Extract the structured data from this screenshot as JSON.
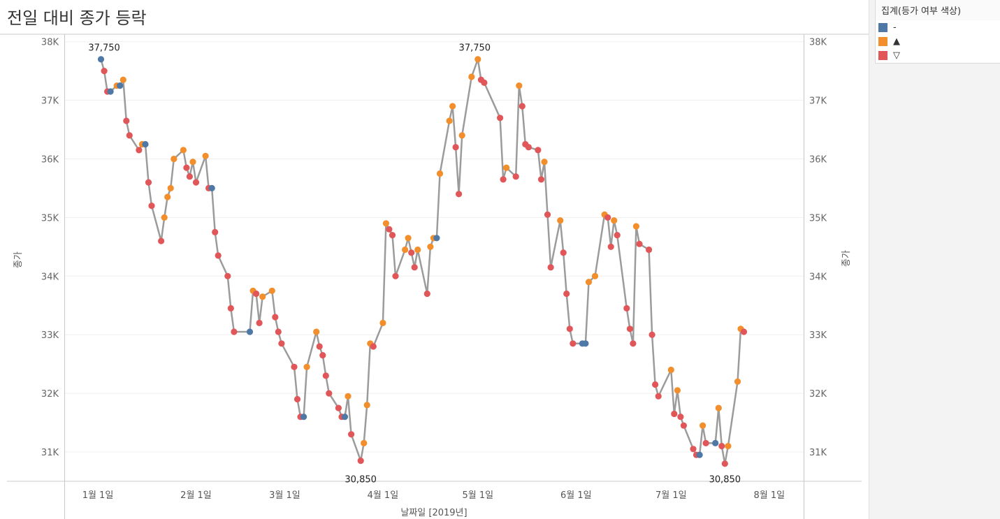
{
  "title": "전일 대비 종가 등락",
  "legend": {
    "title": "집계(등가 여부 색상)",
    "items": [
      {
        "label": "-",
        "color": "#4e79a7"
      },
      {
        "label": "▲",
        "color": "#f28e2b"
      },
      {
        "label": "▽",
        "color": "#e15759"
      }
    ]
  },
  "chart_data": {
    "type": "line",
    "xlabel": "날짜일 [2019년]",
    "ylabel_left": "종가",
    "ylabel_right": "종가",
    "x_ticks": [
      "1월 1일",
      "2월 1일",
      "3월 1일",
      "4월 1일",
      "5월 1일",
      "6월 1일",
      "7월 1일",
      "8월 1일"
    ],
    "y_ticks": [
      "31K",
      "32K",
      "33K",
      "34K",
      "35K",
      "36K",
      "37K",
      "38K"
    ],
    "y_range": [
      30500,
      38100
    ],
    "line_color": "#9b9b9b",
    "series": [
      {
        "points": [
          [
            "2019-01-02",
            37700,
            "-"
          ],
          [
            "2019-01-03",
            37500,
            "▽"
          ],
          [
            "2019-01-04",
            37150,
            "▽"
          ],
          [
            "2019-01-05",
            37150,
            "-"
          ],
          [
            "2019-01-07",
            37250,
            "▲"
          ],
          [
            "2019-01-08",
            37250,
            "-"
          ],
          [
            "2019-01-09",
            37350,
            "▲"
          ],
          [
            "2019-01-10",
            36650,
            "▽"
          ],
          [
            "2019-01-11",
            36400,
            "▽"
          ],
          [
            "2019-01-14",
            36150,
            "▽"
          ],
          [
            "2019-01-15",
            36250,
            "▲"
          ],
          [
            "2019-01-16",
            36250,
            "-"
          ],
          [
            "2019-01-17",
            35600,
            "▽"
          ],
          [
            "2019-01-18",
            35200,
            "▽"
          ],
          [
            "2019-01-21",
            34600,
            "▽"
          ],
          [
            "2019-01-22",
            35000,
            "▲"
          ],
          [
            "2019-01-23",
            35350,
            "▲"
          ],
          [
            "2019-01-24",
            35500,
            "▲"
          ],
          [
            "2019-01-25",
            36000,
            "▲"
          ],
          [
            "2019-01-28",
            36150,
            "▲"
          ],
          [
            "2019-01-29",
            35850,
            "▽"
          ],
          [
            "2019-01-30",
            35700,
            "▽"
          ],
          [
            "2019-01-31",
            35950,
            "▲"
          ],
          [
            "2019-02-01",
            35600,
            "▽"
          ],
          [
            "2019-02-04",
            36050,
            "▲"
          ],
          [
            "2019-02-05",
            35500,
            "▽"
          ],
          [
            "2019-02-06",
            35500,
            "-"
          ],
          [
            "2019-02-07",
            34750,
            "▽"
          ],
          [
            "2019-02-08",
            34350,
            "▽"
          ],
          [
            "2019-02-11",
            34000,
            "▽"
          ],
          [
            "2019-02-12",
            33450,
            "▽"
          ],
          [
            "2019-02-13",
            33050,
            "▽"
          ],
          [
            "2019-02-18",
            33050,
            "-"
          ],
          [
            "2019-02-19",
            33750,
            "▲"
          ],
          [
            "2019-02-20",
            33700,
            "▽"
          ],
          [
            "2019-02-21",
            33200,
            "▽"
          ],
          [
            "2019-02-22",
            33650,
            "▲"
          ],
          [
            "2019-02-25",
            33750,
            "▲"
          ],
          [
            "2019-02-26",
            33300,
            "▽"
          ],
          [
            "2019-02-27",
            33050,
            "▽"
          ],
          [
            "2019-02-28",
            32850,
            "▽"
          ],
          [
            "2019-03-04",
            32450,
            "▽"
          ],
          [
            "2019-03-05",
            31900,
            "▽"
          ],
          [
            "2019-03-06",
            31600,
            "▽"
          ],
          [
            "2019-03-07",
            31600,
            "-"
          ],
          [
            "2019-03-08",
            32450,
            "▲"
          ],
          [
            "2019-03-11",
            33050,
            "▲"
          ],
          [
            "2019-03-12",
            32800,
            "▽"
          ],
          [
            "2019-03-13",
            32650,
            "▽"
          ],
          [
            "2019-03-14",
            32300,
            "▽"
          ],
          [
            "2019-03-15",
            32000,
            "▽"
          ],
          [
            "2019-03-18",
            31750,
            "▽"
          ],
          [
            "2019-03-19",
            31600,
            "▽"
          ],
          [
            "2019-03-20",
            31600,
            "-"
          ],
          [
            "2019-03-21",
            31950,
            "▲"
          ],
          [
            "2019-03-22",
            31300,
            "▽"
          ],
          [
            "2019-03-25",
            30850,
            "▽"
          ],
          [
            "2019-03-26",
            31150,
            "▲"
          ],
          [
            "2019-03-27",
            31800,
            "▲"
          ],
          [
            "2019-03-28",
            32850,
            "▲"
          ],
          [
            "2019-03-29",
            32800,
            "▽"
          ],
          [
            "2019-04-01",
            33200,
            "▲"
          ],
          [
            "2019-04-02",
            34900,
            "▲"
          ],
          [
            "2019-04-03",
            34800,
            "▽"
          ],
          [
            "2019-04-04",
            34700,
            "▽"
          ],
          [
            "2019-04-05",
            34000,
            "▽"
          ],
          [
            "2019-04-08",
            34450,
            "▲"
          ],
          [
            "2019-04-09",
            34650,
            "▲"
          ],
          [
            "2019-04-10",
            34400,
            "▽"
          ],
          [
            "2019-04-11",
            34150,
            "▽"
          ],
          [
            "2019-04-12",
            34450,
            "▲"
          ],
          [
            "2019-04-15",
            33700,
            "▽"
          ],
          [
            "2019-04-16",
            34500,
            "▲"
          ],
          [
            "2019-04-17",
            34650,
            "▲"
          ],
          [
            "2019-04-18",
            34650,
            "-"
          ],
          [
            "2019-04-19",
            35750,
            "▲"
          ],
          [
            "2019-04-22",
            36650,
            "▲"
          ],
          [
            "2019-04-23",
            36900,
            "▲"
          ],
          [
            "2019-04-24",
            36200,
            "▽"
          ],
          [
            "2019-04-25",
            35400,
            "▽"
          ],
          [
            "2019-04-26",
            36400,
            "▲"
          ],
          [
            "2019-04-29",
            37400,
            "▲"
          ],
          [
            "2019-05-01",
            37700,
            "▲"
          ],
          [
            "2019-05-02",
            37350,
            "▽"
          ],
          [
            "2019-05-03",
            37300,
            "▽"
          ],
          [
            "2019-05-08",
            36700,
            "▽"
          ],
          [
            "2019-05-09",
            35650,
            "▽"
          ],
          [
            "2019-05-10",
            35850,
            "▲"
          ],
          [
            "2019-05-13",
            35700,
            "▽"
          ],
          [
            "2019-05-14",
            37250,
            "▲"
          ],
          [
            "2019-05-15",
            36900,
            "▽"
          ],
          [
            "2019-05-16",
            36250,
            "▽"
          ],
          [
            "2019-05-17",
            36200,
            "▽"
          ],
          [
            "2019-05-20",
            36150,
            "▽"
          ],
          [
            "2019-05-21",
            35650,
            "▽"
          ],
          [
            "2019-05-22",
            35950,
            "▲"
          ],
          [
            "2019-05-23",
            35050,
            "▽"
          ],
          [
            "2019-05-24",
            34150,
            "▽"
          ],
          [
            "2019-05-27",
            34950,
            "▲"
          ],
          [
            "2019-05-28",
            34400,
            "▽"
          ],
          [
            "2019-05-29",
            33700,
            "▽"
          ],
          [
            "2019-05-30",
            33100,
            "▽"
          ],
          [
            "2019-05-31",
            32850,
            "▽"
          ],
          [
            "2019-06-03",
            32850,
            "-"
          ],
          [
            "2019-06-04",
            32850,
            "-"
          ],
          [
            "2019-06-05",
            33900,
            "▲"
          ],
          [
            "2019-06-07",
            34000,
            "▲"
          ],
          [
            "2019-06-10",
            35050,
            "▲"
          ],
          [
            "2019-06-11",
            35000,
            "▽"
          ],
          [
            "2019-06-12",
            34500,
            "▽"
          ],
          [
            "2019-06-13",
            34950,
            "▲"
          ],
          [
            "2019-06-14",
            34700,
            "▽"
          ],
          [
            "2019-06-17",
            33450,
            "▽"
          ],
          [
            "2019-06-18",
            33100,
            "▽"
          ],
          [
            "2019-06-19",
            32850,
            "▽"
          ],
          [
            "2019-06-20",
            34850,
            "▲"
          ],
          [
            "2019-06-21",
            34550,
            "▽"
          ],
          [
            "2019-06-24",
            34450,
            "▽"
          ],
          [
            "2019-06-25",
            33000,
            "▽"
          ],
          [
            "2019-06-26",
            32150,
            "▽"
          ],
          [
            "2019-06-27",
            31950,
            "▽"
          ],
          [
            "2019-07-01",
            32400,
            "▲"
          ],
          [
            "2019-07-02",
            31650,
            "▽"
          ],
          [
            "2019-07-03",
            32050,
            "▲"
          ],
          [
            "2019-07-04",
            31600,
            "▽"
          ],
          [
            "2019-07-05",
            31450,
            "▽"
          ],
          [
            "2019-07-08",
            31050,
            "▽"
          ],
          [
            "2019-07-09",
            30950,
            "▽"
          ],
          [
            "2019-07-10",
            30950,
            "-"
          ],
          [
            "2019-07-11",
            31450,
            "▲"
          ],
          [
            "2019-07-12",
            31150,
            "▽"
          ],
          [
            "2019-07-15",
            31150,
            "-"
          ],
          [
            "2019-07-16",
            31750,
            "▲"
          ],
          [
            "2019-07-17",
            31100,
            "▽"
          ],
          [
            "2019-07-18",
            30800,
            "▽"
          ],
          [
            "2019-07-19",
            31100,
            "▲"
          ],
          [
            "2019-07-22",
            32200,
            "▲"
          ],
          [
            "2019-07-23",
            33100,
            "▲"
          ],
          [
            "2019-07-24",
            33050,
            "▽"
          ]
        ]
      }
    ],
    "annotations": [
      {
        "date": "2019-01-03",
        "value": 37750,
        "label": "37,750"
      },
      {
        "date": "2019-04-30",
        "value": 37750,
        "label": "37,750"
      },
      {
        "date": "2019-03-25",
        "value": 30850,
        "label": "30,850"
      },
      {
        "date": "2019-07-18",
        "value": 30850,
        "label": "30,850"
      }
    ]
  }
}
